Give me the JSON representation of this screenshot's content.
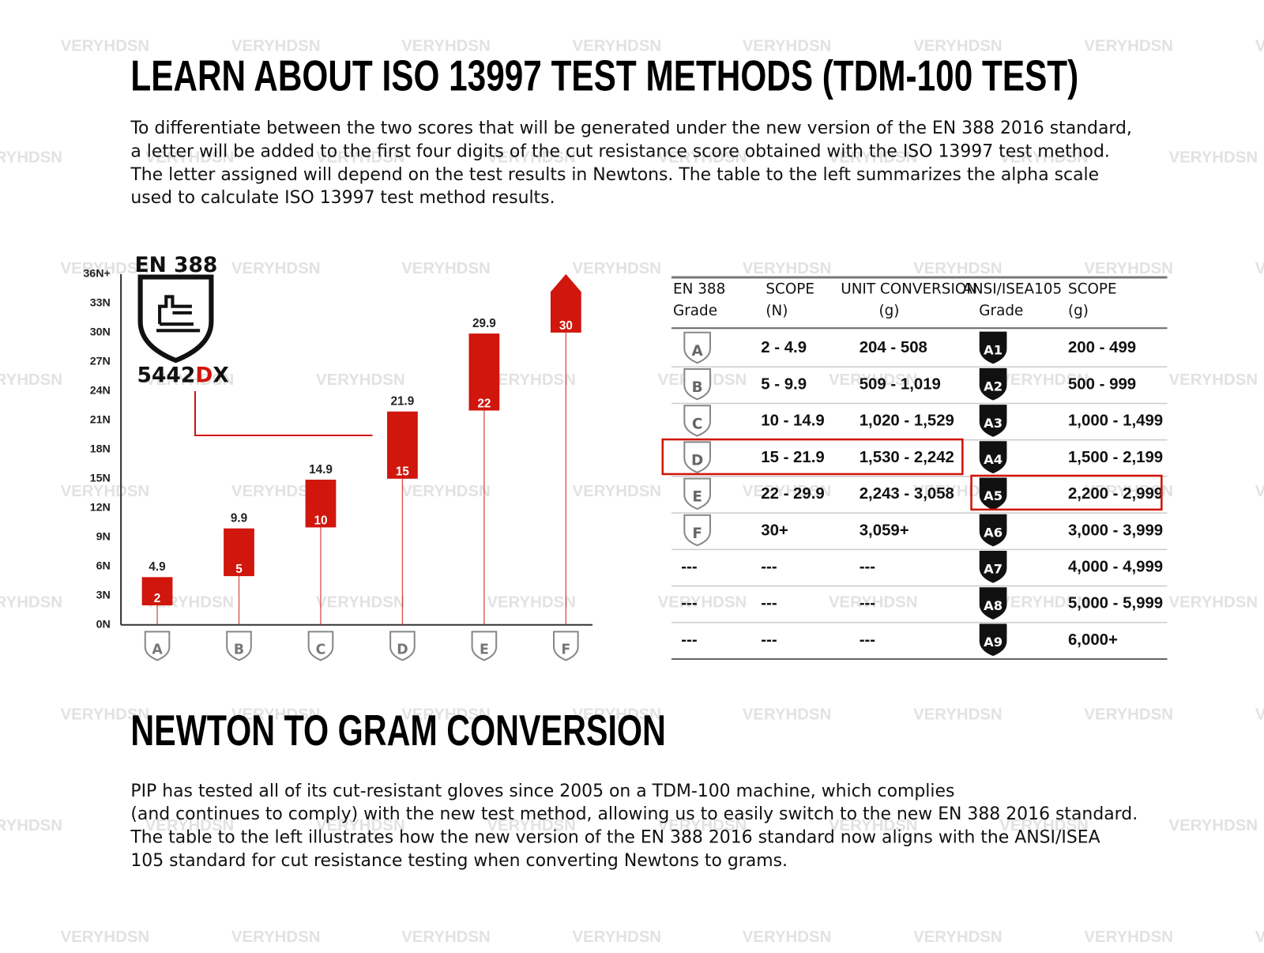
{
  "watermark": "VERYHDSN",
  "title": "LEARN ABOUT ISO 13997 TEST METHODS (TDM-100 TEST)",
  "intro": [
    "To differentiate between the two scores that will be generated under the new version of the EN 388 2016 standard,",
    "a letter will be added to the first four digits of the cut resistance score obtained with the ISO 13997 test method.",
    "The letter assigned will depend on the test results in Newtons. The table to the left summarizes the alpha scale",
    "used to calculate ISO 13997 test method results."
  ],
  "cut_chart": {
    "badge_title": "EN 388",
    "code": [
      "5442",
      "D",
      "X"
    ],
    "ylim": [
      0,
      36
    ],
    "yticks": [
      {
        "value": 0,
        "label": "0N"
      },
      {
        "value": 3,
        "label": "3N"
      },
      {
        "value": 6,
        "label": "6N"
      },
      {
        "value": 9,
        "label": "9N"
      },
      {
        "value": 12,
        "label": "12N"
      },
      {
        "value": 15,
        "label": "15N"
      },
      {
        "value": 18,
        "label": "18N"
      },
      {
        "value": 21,
        "label": "21N"
      },
      {
        "value": 24,
        "label": "24N"
      },
      {
        "value": 27,
        "label": "27N"
      },
      {
        "value": 30,
        "label": "30N"
      },
      {
        "value": 33,
        "label": "33N"
      },
      {
        "value": 36,
        "label": "36N+"
      }
    ],
    "categories": [
      "A",
      "B",
      "C",
      "D",
      "E",
      "F"
    ],
    "low": [
      2,
      5,
      10,
      15,
      22,
      30
    ],
    "high": [
      4.9,
      9.9,
      14.9,
      21.9,
      29.9,
      36
    ],
    "high_labels": [
      "4.9",
      "9.9",
      "14.9",
      "21.9",
      "29.9",
      null
    ],
    "color": "#d0160d"
  },
  "table": {
    "header": [
      [
        "EN 388",
        "Grade"
      ],
      [
        "SCOPE",
        "(N)"
      ],
      [
        "UNIT CONVERSION",
        "(g)"
      ],
      [
        "ANSI/ISEA105",
        "Grade"
      ],
      [
        "SCOPE",
        "(g)"
      ]
    ],
    "rows": [
      [
        "A",
        "2 - 4.9",
        "204 - 508",
        "A1",
        "200 - 499"
      ],
      [
        "B",
        "5 - 9.9",
        "509 - 1,019",
        "A2",
        "500 - 999"
      ],
      [
        "C",
        "10 - 14.9",
        "1,020 - 1,529",
        "A3",
        "1,000 - 1,499"
      ],
      [
        "D",
        "15 - 21.9",
        "1,530 - 2,242",
        "A4",
        "1,500 - 2,199"
      ],
      [
        "E",
        "22 - 29.9",
        "2,243 - 3,058",
        "A5",
        "2,200 - 2,999"
      ],
      [
        "F",
        "30+",
        "3,059+",
        "A6",
        "3,000 - 3,999"
      ],
      [
        "---",
        "---",
        "---",
        "A7",
        "4,000 - 4,999"
      ],
      [
        "---",
        "---",
        "---",
        "A8",
        "5,000 - 5,999"
      ],
      [
        "---",
        "---",
        "---",
        "A9",
        "6,000+"
      ]
    ]
  },
  "title2": "NEWTON TO GRAM CONVERSION",
  "outro": [
    "PIP has tested all of its cut-resistant gloves since 2005 on a TDM-100 machine, which complies",
    "(and continues to comply) with the new test method, allowing us to easily switch to the new EN 388 2016 standard.",
    "The table to the left illustrates how the new version of the EN 388 2016 standard now aligns with the ANSI/ISEA",
    "105 standard for cut resistance testing when converting Newtons to grams."
  ]
}
